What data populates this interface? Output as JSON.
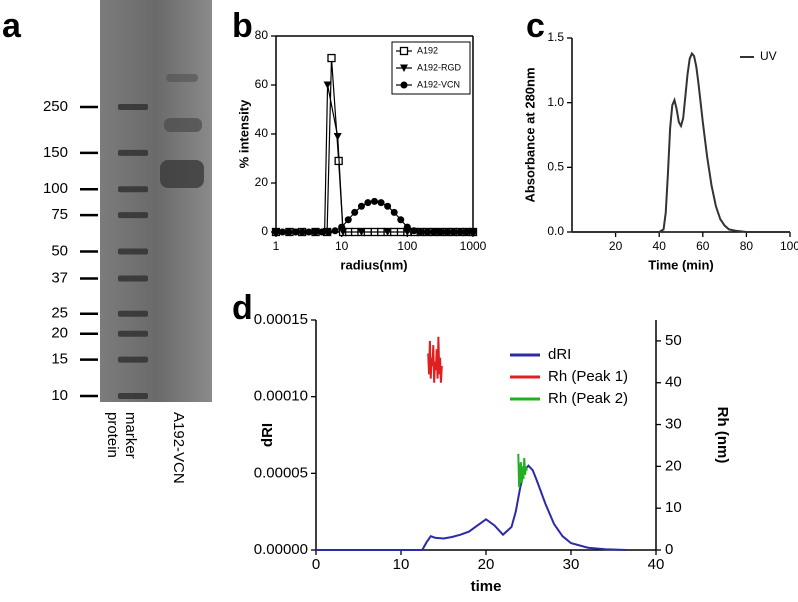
{
  "chart_data": [
    {
      "type": "gel",
      "panel": "a",
      "ticks": [
        250,
        150,
        100,
        75,
        50,
        37,
        25,
        20,
        15,
        10
      ],
      "lanes": [
        [
          "protein",
          "marker"
        ],
        [
          "A192-VCN"
        ]
      ]
    },
    {
      "type": "scatter",
      "panel": "b",
      "xscale": "log",
      "xlabel": "radius(nm)",
      "ylabel": "% intensity",
      "xlim": [
        1,
        1000
      ],
      "xticks": [
        1,
        10,
        100,
        1000
      ],
      "ylim": [
        0,
        80
      ],
      "yticks": [
        0,
        20,
        40,
        60,
        80
      ],
      "legend": "upper right",
      "series": [
        {
          "name": "A192",
          "color": "#000000",
          "marker": "square",
          "x": [
            1,
            1.6,
            2.5,
            4,
            6,
            7,
            9,
            10.5,
            13,
            16,
            20,
            25,
            32,
            40,
            50,
            63,
            80,
            100,
            130,
            160,
            200,
            250,
            320,
            400,
            500,
            630,
            800,
            1000
          ],
          "values": [
            0,
            0,
            0,
            0,
            0,
            71,
            29,
            0,
            0,
            0,
            0,
            0,
            0,
            0,
            0,
            0,
            0,
            0,
            0,
            0,
            0,
            0,
            0,
            0,
            0,
            0,
            0,
            0
          ]
        },
        {
          "name": "A192-RGD",
          "color": "#000000",
          "marker": "triangle-down",
          "x": [
            1,
            2,
            4,
            5.5,
            6.1,
            8.7,
            10.5,
            20,
            50,
            100,
            300,
            1000
          ],
          "values": [
            0,
            0,
            0,
            0,
            60,
            39,
            0,
            0,
            0,
            0,
            0,
            0
          ]
        },
        {
          "name": "A192-VCN",
          "color": "#000000",
          "marker": "circle",
          "x": [
            1,
            1.26,
            1.58,
            2,
            2.51,
            3.16,
            3.98,
            5.01,
            6.31,
            7.94,
            10,
            12.6,
            15.8,
            20,
            25.1,
            31.6,
            39.8,
            50.1,
            63.1,
            79.4,
            100,
            126,
            158,
            200,
            251,
            316,
            398,
            501,
            631,
            794,
            1000
          ],
          "values": [
            0,
            0,
            0,
            0,
            0,
            0,
            0,
            0,
            0,
            0.5,
            2,
            5,
            8,
            10.5,
            12,
            12.5,
            12,
            10.5,
            8,
            5,
            2,
            0.5,
            0,
            0,
            0,
            0,
            0,
            0,
            0,
            0,
            0
          ]
        }
      ]
    },
    {
      "type": "line",
      "panel": "c",
      "xlabel": "Time (min)",
      "ylabel": "Absorbance at 280nm",
      "xlim": [
        0,
        100
      ],
      "xticks": [
        20,
        40,
        60,
        80,
        100
      ],
      "ylim": [
        0,
        1.5
      ],
      "yticks": [
        {
          "value": 0,
          "label": "0.0"
        },
        0.5,
        {
          "value": 1,
          "label": "1.0"
        },
        1.5
      ],
      "legend": "upper right",
      "series": [
        {
          "name": "UV",
          "color": "#333333",
          "x": [
            0,
            5,
            10,
            15,
            20,
            25,
            30,
            35,
            40,
            42,
            43,
            44,
            45,
            46,
            47,
            48,
            49,
            50,
            51,
            52,
            53,
            54,
            55,
            56,
            57,
            58,
            59,
            60,
            62,
            64,
            66,
            68,
            70,
            72,
            75,
            80,
            90,
            100
          ],
          "values": [
            0,
            0,
            0,
            0,
            0,
            0,
            0,
            0,
            0,
            0.02,
            0.15,
            0.45,
            0.8,
            0.98,
            1.02,
            0.95,
            0.85,
            0.82,
            0.88,
            1.05,
            1.22,
            1.34,
            1.38,
            1.36,
            1.28,
            1.15,
            1.0,
            0.85,
            0.58,
            0.36,
            0.2,
            0.1,
            0.05,
            0.02,
            0.01,
            0,
            0,
            0
          ]
        }
      ]
    },
    {
      "type": "line",
      "panel": "d",
      "xlabel": "time",
      "ylabel": "dRI",
      "y2label": "Rh (nm)",
      "xlim": [
        0,
        40
      ],
      "xticks": [
        0,
        10,
        20,
        30,
        40
      ],
      "ylim": [
        0,
        0.00015
      ],
      "yticks": [
        {
          "value": 0,
          "label": "0.00000"
        },
        5e-05,
        {
          "value": 0.0001,
          "label": "0.00010"
        },
        0.00015
      ],
      "y2lim": [
        0,
        55
      ],
      "y2ticks": [
        0,
        10,
        20,
        30,
        40,
        50
      ],
      "legend": "upper right",
      "series": [
        {
          "name": "dRI",
          "color": "#2b2ba8",
          "x": [
            0,
            12.5,
            13,
            13.5,
            14,
            15,
            16,
            17,
            18,
            19,
            20,
            21,
            22,
            23,
            23.5,
            24,
            24.5,
            25,
            25.5,
            26,
            27,
            28,
            29,
            30,
            32,
            34,
            36.5
          ],
          "values": [
            0,
            0,
            5e-06,
            9e-06,
            8e-06,
            7.5e-06,
            8.5e-06,
            1e-05,
            1.2e-05,
            1.6e-05,
            2e-05,
            1.6e-05,
            1e-05,
            1.5e-05,
            2.5e-05,
            4e-05,
            5.2e-05,
            5.5e-05,
            5.2e-05,
            4.5e-05,
            3e-05,
            1.7e-05,
            9e-06,
            4.5e-06,
            1.5e-06,
            5e-07,
            0
          ]
        },
        {
          "name": "Rh (Peak 1)",
          "color": "#e02020",
          "axis": "y2",
          "x": [
            13.2,
            13.3,
            13.4,
            13.5,
            13.6,
            13.7,
            13.8,
            13.9,
            14,
            14.1,
            14.2,
            14.3,
            14.4,
            14.5,
            14.6,
            14.7,
            14.8
          ],
          "values": [
            47,
            42,
            50,
            41,
            46,
            44,
            49,
            40,
            45,
            43,
            48,
            41,
            51,
            42,
            46,
            40,
            44
          ]
        },
        {
          "name": "Rh (Peak 2)",
          "color": "#22b022",
          "axis": "y2",
          "x": [
            23.8,
            23.9,
            24,
            24.1,
            24.2,
            24.3,
            24.4,
            24.5,
            24.6,
            24.7,
            24.8
          ],
          "values": [
            23,
            15,
            19,
            21,
            16,
            20,
            17,
            22,
            18,
            20,
            19
          ]
        }
      ]
    }
  ]
}
